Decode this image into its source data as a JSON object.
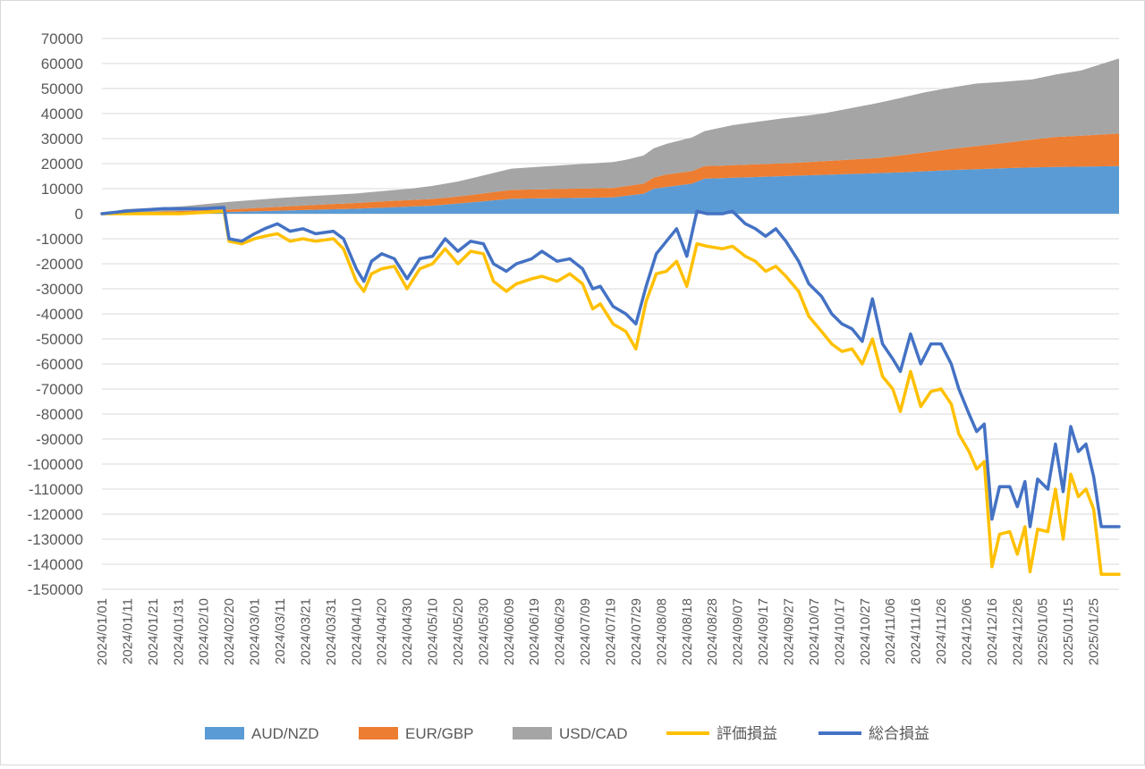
{
  "chart_data": {
    "type": "area",
    "x_start": "2024/01/01",
    "x_end": "2025/02/04",
    "x_tick_step_days": 10,
    "x_tick_labels": [
      "2024/01/01",
      "2024/01/11",
      "2024/01/21",
      "2024/01/31",
      "2024/02/10",
      "2024/02/20",
      "2024/03/01",
      "2024/03/11",
      "2024/03/21",
      "2024/03/31",
      "2024/04/10",
      "2024/04/20",
      "2024/04/30",
      "2024/05/10",
      "2024/05/20",
      "2024/05/30",
      "2024/06/09",
      "2024/06/19",
      "2024/06/29",
      "2024/07/09",
      "2024/07/19",
      "2024/07/29",
      "2024/08/08",
      "2024/08/18",
      "2024/08/28",
      "2024/09/07",
      "2024/09/17",
      "2024/09/27",
      "2024/10/07",
      "2024/10/17",
      "2024/10/27",
      "2024/11/06",
      "2024/11/16",
      "2024/11/26",
      "2024/12/06",
      "2024/12/16",
      "2024/12/26",
      "2025/01/05",
      "2025/01/15",
      "2025/01/25"
    ],
    "ylim": [
      -150000,
      70000
    ],
    "y_tick_labels": [
      "70000",
      "60000",
      "50000",
      "40000",
      "30000",
      "20000",
      "10000",
      "0",
      "-10000",
      "-20000",
      "-30000",
      "-40000",
      "-50000",
      "-60000",
      "-70000",
      "-80000",
      "-90000",
      "-100000",
      "-110000",
      "-120000",
      "-130000",
      "-140000",
      "-150000"
    ],
    "grid": true,
    "legend_position": "bottom",
    "colors": {
      "aud_nzd": "#5b9bd5",
      "eur_gbp": "#ed7d31",
      "usd_cad": "#a5a5a5",
      "hyoka": "#ffc000",
      "sogo": "#4472c4"
    },
    "stacked_series": [
      {
        "name": "AUD/NZD",
        "points": [
          [
            "2024/01/01",
            0
          ],
          [
            "2024/01/20",
            400
          ],
          [
            "2024/02/20",
            700
          ],
          [
            "2024/03/10",
            1200
          ],
          [
            "2024/04/10",
            2000
          ],
          [
            "2024/05/10",
            3200
          ],
          [
            "2024/05/25",
            4500
          ],
          [
            "2024/06/10",
            6000
          ],
          [
            "2024/07/20",
            6500
          ],
          [
            "2024/08/01",
            8000
          ],
          [
            "2024/08/05",
            10000
          ],
          [
            "2024/08/20",
            12000
          ],
          [
            "2024/08/25",
            14000
          ],
          [
            "2024/09/10",
            14500
          ],
          [
            "2024/10/10",
            15500
          ],
          [
            "2024/11/10",
            16500
          ],
          [
            "2024/12/01",
            17500
          ],
          [
            "2025/01/01",
            18500
          ],
          [
            "2025/02/04",
            19000
          ]
        ]
      },
      {
        "name": "EUR/GBP",
        "points": [
          [
            "2024/01/01",
            0
          ],
          [
            "2024/01/20",
            300
          ],
          [
            "2024/02/20",
            1000
          ],
          [
            "2024/03/20",
            1800
          ],
          [
            "2024/04/20",
            2500
          ],
          [
            "2024/05/20",
            2800
          ],
          [
            "2024/06/10",
            3500
          ],
          [
            "2024/07/20",
            3800
          ],
          [
            "2024/08/01",
            4000
          ],
          [
            "2024/08/10",
            5000
          ],
          [
            "2024/09/01",
            5000
          ],
          [
            "2024/10/01",
            5200
          ],
          [
            "2024/11/01",
            6000
          ],
          [
            "2024/12/01",
            8500
          ],
          [
            "2024/12/20",
            10000
          ],
          [
            "2025/01/10",
            12000
          ],
          [
            "2025/02/04",
            13000
          ]
        ]
      },
      {
        "name": "USD/CAD",
        "points": [
          [
            "2024/01/01",
            0
          ],
          [
            "2024/01/10",
            1500
          ],
          [
            "2024/02/01",
            1800
          ],
          [
            "2024/02/20",
            3000
          ],
          [
            "2024/03/10",
            3500
          ],
          [
            "2024/04/10",
            3800
          ],
          [
            "2024/05/01",
            4500
          ],
          [
            "2024/05/20",
            6000
          ],
          [
            "2024/06/10",
            8500
          ],
          [
            "2024/07/01",
            9500
          ],
          [
            "2024/07/25",
            10500
          ],
          [
            "2024/08/08",
            12000
          ],
          [
            "2024/08/25",
            14000
          ],
          [
            "2024/09/05",
            16000
          ],
          [
            "2024/09/25",
            18000
          ],
          [
            "2024/10/10",
            19000
          ],
          [
            "2024/11/01",
            22000
          ],
          [
            "2024/11/20",
            24000
          ],
          [
            "2024/12/10",
            25000
          ],
          [
            "2025/01/01",
            24000
          ],
          [
            "2025/01/20",
            26000
          ],
          [
            "2025/02/04",
            30000
          ]
        ]
      }
    ],
    "line_series": [
      {
        "name": "評価損益",
        "points": [
          [
            "2024/01/01",
            0
          ],
          [
            "2024/01/15",
            0
          ],
          [
            "2024/02/01",
            0
          ],
          [
            "2024/02/18",
            1000
          ],
          [
            "2024/02/20",
            -11000
          ],
          [
            "2024/02/25",
            -12000
          ],
          [
            "2024/03/01",
            -10000
          ],
          [
            "2024/03/05",
            -9000
          ],
          [
            "2024/03/10",
            -8000
          ],
          [
            "2024/03/15",
            -11000
          ],
          [
            "2024/03/20",
            -10000
          ],
          [
            "2024/03/25",
            -11000
          ],
          [
            "2024/04/01",
            -10000
          ],
          [
            "2024/04/05",
            -14000
          ],
          [
            "2024/04/10",
            -27000
          ],
          [
            "2024/04/13",
            -31000
          ],
          [
            "2024/04/16",
            -24000
          ],
          [
            "2024/04/20",
            -22000
          ],
          [
            "2024/04/25",
            -21000
          ],
          [
            "2024/04/30",
            -30000
          ],
          [
            "2024/05/05",
            -22000
          ],
          [
            "2024/05/10",
            -20000
          ],
          [
            "2024/05/15",
            -14000
          ],
          [
            "2024/05/20",
            -20000
          ],
          [
            "2024/05/25",
            -15000
          ],
          [
            "2024/05/30",
            -16000
          ],
          [
            "2024/06/03",
            -27000
          ],
          [
            "2024/06/08",
            -31000
          ],
          [
            "2024/06/12",
            -28000
          ],
          [
            "2024/06/18",
            -26000
          ],
          [
            "2024/06/22",
            -25000
          ],
          [
            "2024/06/28",
            -27000
          ],
          [
            "2024/07/03",
            -24000
          ],
          [
            "2024/07/08",
            -28000
          ],
          [
            "2024/07/12",
            -38000
          ],
          [
            "2024/07/15",
            -36000
          ],
          [
            "2024/07/20",
            -44000
          ],
          [
            "2024/07/25",
            -47000
          ],
          [
            "2024/07/29",
            -54000
          ],
          [
            "2024/08/02",
            -35000
          ],
          [
            "2024/08/06",
            -24000
          ],
          [
            "2024/08/10",
            -23000
          ],
          [
            "2024/08/14",
            -19000
          ],
          [
            "2024/08/18",
            -29000
          ],
          [
            "2024/08/22",
            -12000
          ],
          [
            "2024/08/26",
            -13000
          ],
          [
            "2024/09/01",
            -14000
          ],
          [
            "2024/09/05",
            -13000
          ],
          [
            "2024/09/10",
            -17000
          ],
          [
            "2024/09/14",
            -19000
          ],
          [
            "2024/09/18",
            -23000
          ],
          [
            "2024/09/22",
            -21000
          ],
          [
            "2024/09/26",
            -25000
          ],
          [
            "2024/10/01",
            -31000
          ],
          [
            "2024/10/05",
            -41000
          ],
          [
            "2024/10/10",
            -47000
          ],
          [
            "2024/10/14",
            -52000
          ],
          [
            "2024/10/18",
            -55000
          ],
          [
            "2024/10/22",
            -54000
          ],
          [
            "2024/10/26",
            -60000
          ],
          [
            "2024/10/30",
            -50000
          ],
          [
            "2024/11/03",
            -65000
          ],
          [
            "2024/11/07",
            -70000
          ],
          [
            "2024/11/10",
            -79000
          ],
          [
            "2024/11/14",
            -63000
          ],
          [
            "2024/11/18",
            -77000
          ],
          [
            "2024/11/22",
            -71000
          ],
          [
            "2024/11/26",
            -70000
          ],
          [
            "2024/11/30",
            -76000
          ],
          [
            "2024/12/03",
            -88000
          ],
          [
            "2024/12/07",
            -95000
          ],
          [
            "2024/12/10",
            -102000
          ],
          [
            "2024/12/13",
            -99000
          ],
          [
            "2024/12/16",
            -141000
          ],
          [
            "2024/12/19",
            -128000
          ],
          [
            "2024/12/23",
            -127000
          ],
          [
            "2024/12/26",
            -136000
          ],
          [
            "2024/12/29",
            -125000
          ],
          [
            "2024/12/31",
            -143000
          ],
          [
            "2025/01/03",
            -126000
          ],
          [
            "2025/01/07",
            -127000
          ],
          [
            "2025/01/10",
            -110000
          ],
          [
            "2025/01/13",
            -130000
          ],
          [
            "2025/01/16",
            -104000
          ],
          [
            "2025/01/19",
            -113000
          ],
          [
            "2025/01/22",
            -110000
          ],
          [
            "2025/01/25",
            -118000
          ],
          [
            "2025/01/28",
            -144000
          ],
          [
            "2025/02/04",
            -144000
          ]
        ]
      },
      {
        "name": "総合損益",
        "points": [
          [
            "2024/01/01",
            0
          ],
          [
            "2024/01/10",
            1000
          ],
          [
            "2024/01/25",
            2000
          ],
          [
            "2024/02/10",
            2000
          ],
          [
            "2024/02/18",
            2500
          ],
          [
            "2024/02/20",
            -10000
          ],
          [
            "2024/02/25",
            -11000
          ],
          [
            "2024/03/01",
            -8000
          ],
          [
            "2024/03/05",
            -6000
          ],
          [
            "2024/03/10",
            -4000
          ],
          [
            "2024/03/15",
            -7000
          ],
          [
            "2024/03/20",
            -6000
          ],
          [
            "2024/03/25",
            -8000
          ],
          [
            "2024/04/01",
            -7000
          ],
          [
            "2024/04/05",
            -10000
          ],
          [
            "2024/04/10",
            -22000
          ],
          [
            "2024/04/13",
            -27000
          ],
          [
            "2024/04/16",
            -19000
          ],
          [
            "2024/04/20",
            -16000
          ],
          [
            "2024/04/25",
            -18000
          ],
          [
            "2024/04/30",
            -26000
          ],
          [
            "2024/05/05",
            -18000
          ],
          [
            "2024/05/10",
            -17000
          ],
          [
            "2024/05/15",
            -10000
          ],
          [
            "2024/05/20",
            -15000
          ],
          [
            "2024/05/25",
            -11000
          ],
          [
            "2024/05/30",
            -12000
          ],
          [
            "2024/06/03",
            -20000
          ],
          [
            "2024/06/08",
            -23000
          ],
          [
            "2024/06/12",
            -20000
          ],
          [
            "2024/06/18",
            -18000
          ],
          [
            "2024/06/22",
            -15000
          ],
          [
            "2024/06/28",
            -19000
          ],
          [
            "2024/07/03",
            -18000
          ],
          [
            "2024/07/08",
            -22000
          ],
          [
            "2024/07/12",
            -30000
          ],
          [
            "2024/07/15",
            -29000
          ],
          [
            "2024/07/20",
            -37000
          ],
          [
            "2024/07/25",
            -40000
          ],
          [
            "2024/07/29",
            -44000
          ],
          [
            "2024/08/02",
            -29000
          ],
          [
            "2024/08/06",
            -16000
          ],
          [
            "2024/08/10",
            -11000
          ],
          [
            "2024/08/14",
            -6000
          ],
          [
            "2024/08/18",
            -17000
          ],
          [
            "2024/08/22",
            1000
          ],
          [
            "2024/08/26",
            0
          ],
          [
            "2024/09/01",
            0
          ],
          [
            "2024/09/05",
            1000
          ],
          [
            "2024/09/10",
            -4000
          ],
          [
            "2024/09/14",
            -6000
          ],
          [
            "2024/09/18",
            -9000
          ],
          [
            "2024/09/22",
            -6000
          ],
          [
            "2024/09/26",
            -11000
          ],
          [
            "2024/10/01",
            -19000
          ],
          [
            "2024/10/05",
            -28000
          ],
          [
            "2024/10/10",
            -33000
          ],
          [
            "2024/10/14",
            -40000
          ],
          [
            "2024/10/18",
            -44000
          ],
          [
            "2024/10/22",
            -46000
          ],
          [
            "2024/10/26",
            -51000
          ],
          [
            "2024/10/30",
            -34000
          ],
          [
            "2024/11/03",
            -52000
          ],
          [
            "2024/11/07",
            -58000
          ],
          [
            "2024/11/10",
            -63000
          ],
          [
            "2024/11/14",
            -48000
          ],
          [
            "2024/11/18",
            -60000
          ],
          [
            "2024/11/22",
            -52000
          ],
          [
            "2024/11/26",
            -52000
          ],
          [
            "2024/11/30",
            -60000
          ],
          [
            "2024/12/03",
            -70000
          ],
          [
            "2024/12/07",
            -80000
          ],
          [
            "2024/12/10",
            -87000
          ],
          [
            "2024/12/13",
            -84000
          ],
          [
            "2024/12/16",
            -122000
          ],
          [
            "2024/12/19",
            -109000
          ],
          [
            "2024/12/23",
            -109000
          ],
          [
            "2024/12/26",
            -117000
          ],
          [
            "2024/12/29",
            -107000
          ],
          [
            "2024/12/31",
            -125000
          ],
          [
            "2025/01/03",
            -106000
          ],
          [
            "2025/01/07",
            -110000
          ],
          [
            "2025/01/10",
            -92000
          ],
          [
            "2025/01/13",
            -111000
          ],
          [
            "2025/01/16",
            -85000
          ],
          [
            "2025/01/19",
            -95000
          ],
          [
            "2025/01/22",
            -92000
          ],
          [
            "2025/01/25",
            -105000
          ],
          [
            "2025/01/28",
            -125000
          ],
          [
            "2025/02/04",
            -125000
          ]
        ]
      }
    ],
    "legend": [
      {
        "label": "AUD/NZD",
        "kind": "area",
        "color_key": "aud_nzd"
      },
      {
        "label": "EUR/GBP",
        "kind": "area",
        "color_key": "eur_gbp"
      },
      {
        "label": "USD/CAD",
        "kind": "area",
        "color_key": "usd_cad"
      },
      {
        "label": "評価損益",
        "kind": "line",
        "color_key": "hyoka"
      },
      {
        "label": "総合損益",
        "kind": "line",
        "color_key": "sogo"
      }
    ]
  }
}
